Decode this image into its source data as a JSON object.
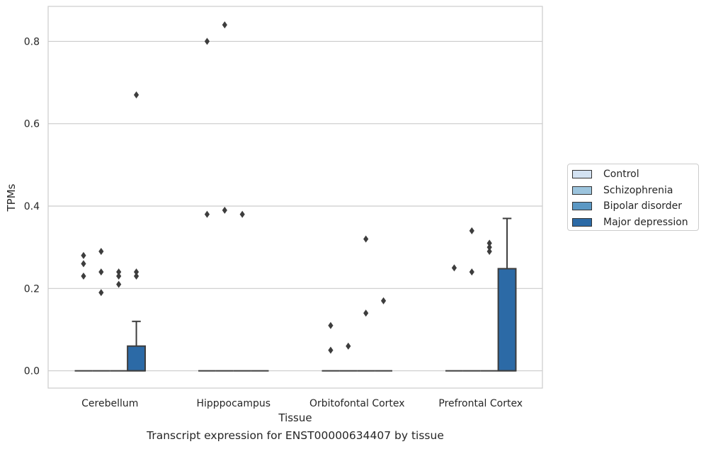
{
  "chart_data": {
    "type": "box",
    "xlabel": "Tissue",
    "ylabel": "TPMs",
    "caption": "Transcript expression for ENST00000634407 by tissue",
    "ylim": [
      -0.042,
      0.885
    ],
    "yticks": [
      0.0,
      0.2,
      0.4,
      0.6,
      0.8
    ],
    "ytick_labels": [
      "0.0",
      "0.2",
      "0.4",
      "0.6",
      "0.8"
    ],
    "grid": "horizontal",
    "legend_position": "right",
    "categories": [
      "Cerebellum",
      "Hipppocampus",
      "Orbitofontal Cortex",
      "Prefrontal Cortex"
    ],
    "series": [
      {
        "name": "Control",
        "color": "#d3e2f2",
        "boxes": [
          {
            "q1": 0,
            "median": 0,
            "q3": 0,
            "whisker_low": 0,
            "whisker_high": 0,
            "outliers": [
              0.28,
              0.26,
              0.23
            ]
          },
          {
            "q1": 0,
            "median": 0,
            "q3": 0,
            "whisker_low": 0,
            "whisker_high": 0,
            "outliers": [
              0.8,
              0.38
            ]
          },
          {
            "q1": 0,
            "median": 0,
            "q3": 0,
            "whisker_low": 0,
            "whisker_high": 0,
            "outliers": [
              0.11,
              0.05
            ]
          },
          {
            "q1": 0,
            "median": 0,
            "q3": 0,
            "whisker_low": 0,
            "whisker_high": 0,
            "outliers": [
              0.25
            ]
          }
        ]
      },
      {
        "name": "Schizophrenia",
        "color": "#9cc4dd",
        "boxes": [
          {
            "q1": 0,
            "median": 0,
            "q3": 0,
            "whisker_low": 0,
            "whisker_high": 0,
            "outliers": [
              0.29,
              0.24,
              0.19
            ]
          },
          {
            "q1": 0,
            "median": 0,
            "q3": 0,
            "whisker_low": 0,
            "whisker_high": 0,
            "outliers": [
              0.84,
              0.39
            ]
          },
          {
            "q1": 0,
            "median": 0,
            "q3": 0,
            "whisker_low": 0,
            "whisker_high": 0,
            "outliers": [
              0.06
            ]
          },
          {
            "q1": 0,
            "median": 0,
            "q3": 0,
            "whisker_low": 0,
            "whisker_high": 0,
            "outliers": [
              0.34,
              0.24
            ]
          }
        ]
      },
      {
        "name": "Bipolar disorder",
        "color": "#5b98c4",
        "boxes": [
          {
            "q1": 0,
            "median": 0,
            "q3": 0,
            "whisker_low": 0,
            "whisker_high": 0,
            "outliers": [
              0.24,
              0.23,
              0.21
            ]
          },
          {
            "q1": 0,
            "median": 0,
            "q3": 0,
            "whisker_low": 0,
            "whisker_high": 0,
            "outliers": [
              0.38
            ]
          },
          {
            "q1": 0,
            "median": 0,
            "q3": 0,
            "whisker_low": 0,
            "whisker_high": 0,
            "outliers": [
              0.32,
              0.14
            ]
          },
          {
            "q1": 0,
            "median": 0,
            "q3": 0,
            "whisker_low": 0,
            "whisker_high": 0,
            "outliers": [
              0.31,
              0.3,
              0.29
            ]
          }
        ]
      },
      {
        "name": "Major depression",
        "color": "#2c6aa6",
        "boxes": [
          {
            "q1": 0,
            "median": 0,
            "q3": 0.06,
            "whisker_low": 0,
            "whisker_high": 0.12,
            "outliers": [
              0.67,
              0.24,
              0.23
            ]
          },
          {
            "q1": 0,
            "median": 0,
            "q3": 0,
            "whisker_low": 0,
            "whisker_high": 0,
            "outliers": []
          },
          {
            "q1": 0,
            "median": 0,
            "q3": 0,
            "whisker_low": 0,
            "whisker_high": 0,
            "outliers": [
              0.17
            ]
          },
          {
            "q1": 0,
            "median": 0,
            "q3": 0.248,
            "whisker_low": 0,
            "whisker_high": 0.37,
            "outliers": []
          }
        ]
      }
    ]
  }
}
